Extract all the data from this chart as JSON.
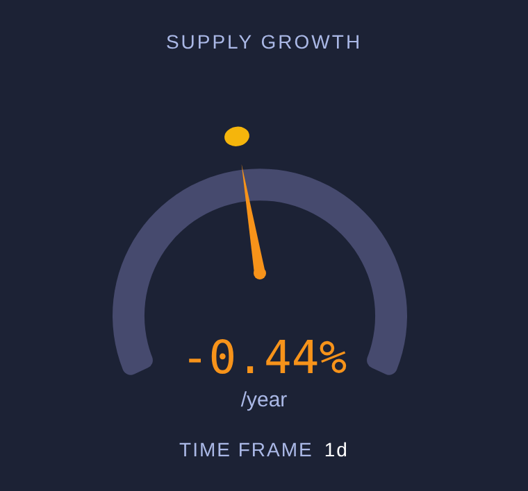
{
  "chart_data": {
    "type": "other",
    "title": "SUPPLY GROWTH",
    "values": [
      -0.44
    ],
    "value_labels": [
      "-0.44%"
    ],
    "annotations": [
      "/year",
      "TIME FRAME",
      "1d"
    ]
  }
}
